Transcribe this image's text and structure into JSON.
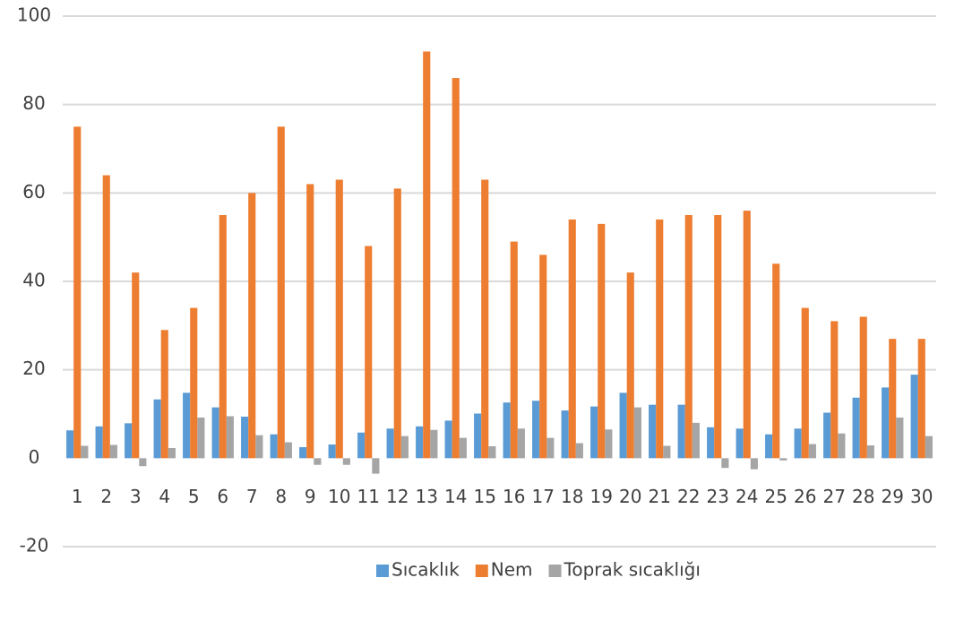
{
  "chart_data": {
    "type": "bar",
    "categories": [
      "1",
      "2",
      "3",
      "4",
      "5",
      "6",
      "7",
      "8",
      "9",
      "10",
      "11",
      "12",
      "13",
      "14",
      "15",
      "16",
      "17",
      "18",
      "19",
      "20",
      "21",
      "22",
      "23",
      "24",
      "25",
      "26",
      "27",
      "28",
      "29",
      "30"
    ],
    "series": [
      {
        "name": "Sıcaklık",
        "color": "#5b9bd5",
        "values": [
          6.3,
          7.2,
          7.9,
          13.3,
          14.8,
          11.5,
          9.4,
          5.4,
          2.5,
          3.1,
          5.8,
          6.7,
          7.2,
          8.5,
          10.1,
          12.6,
          13.0,
          10.8,
          11.7,
          14.8,
          12.1,
          12.1,
          7.0,
          6.7,
          5.4,
          6.7,
          10.3,
          13.7,
          16.0,
          18.9
        ]
      },
      {
        "name": "Nem",
        "color": "#ed7d31",
        "values": [
          75,
          64,
          42,
          29,
          34,
          55,
          60,
          75,
          62,
          63,
          48,
          61,
          92,
          86,
          63,
          49,
          46,
          54,
          53,
          42,
          54,
          55,
          55,
          56,
          44,
          34,
          31,
          32,
          27,
          27
        ]
      },
      {
        "name": "Toprak sıcaklığı",
        "color": "#a5a5a5",
        "values": [
          2.8,
          3.0,
          -1.8,
          2.3,
          9.2,
          9.5,
          5.2,
          3.6,
          -1.5,
          -1.5,
          -3.5,
          5.0,
          6.4,
          4.6,
          2.7,
          6.7,
          4.6,
          3.4,
          6.5,
          11.5,
          2.8,
          8.0,
          -2.2,
          -2.5,
          -0.5,
          3.2,
          5.6,
          2.9,
          9.2,
          5.0
        ]
      }
    ],
    "ylim": [
      -20,
      100
    ],
    "yticks": [
      -20,
      0,
      20,
      40,
      60,
      80,
      100
    ],
    "grid": true,
    "legend": "bottom"
  }
}
